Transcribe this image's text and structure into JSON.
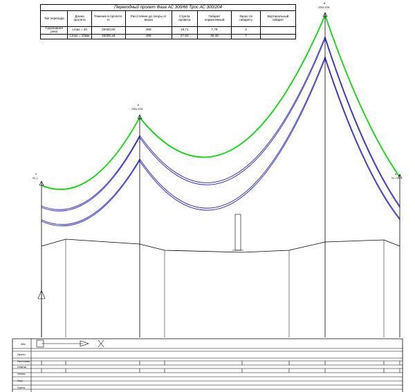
{
  "table": {
    "title": "Переходный пролет Фаза АС 300/66    Трос АС 300/204",
    "headers": [
      "Тип перехода",
      "Длина пролета",
      "Тяжение в пролете, Н",
      "Расстояние до опоры от верха",
      "Стрела провеса",
      "Габарит нормативный",
      "Запас по габариту",
      "Вертикальный габарит"
    ],
    "rows": [
      [
        "Судоходная река",
        "Lmax = 40",
        "28400,00",
        "488",
        "18,71",
        "7,79",
        "3",
        ""
      ],
      [
        "",
        "Lmax = 10мм",
        "46009,18",
        "488",
        "27,83",
        "26,48",
        "7",
        ""
      ]
    ]
  },
  "supports": [
    {
      "number": "1",
      "type": "ПС-1"
    },
    {
      "number": "2",
      "type": "2ПВ2-57М"
    },
    {
      "number": "3",
      "type": "2ПВ2-57М"
    },
    {
      "number": "4",
      "type": "ПС-1"
    }
  ],
  "left_labels": [
    "Абс",
    "Пикеты",
    "Расстояния",
    "Отметки",
    "Уклоны",
    "Углы",
    "Грунты"
  ],
  "colors": {
    "ground_wire": "#00e000",
    "phase_wire": "#1e1ed2",
    "structure": "#000000"
  }
}
